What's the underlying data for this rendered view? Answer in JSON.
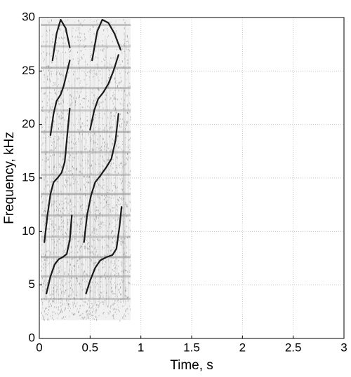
{
  "chart_data": {
    "type": "spectrogram",
    "xlabel": "Time, s",
    "ylabel": "Frequency, kHz",
    "xlim": [
      0,
      3
    ],
    "xticks": [
      0,
      0.5,
      1,
      1.5,
      2,
      2.5,
      3
    ],
    "ylim": [
      0,
      30
    ],
    "yticks": [
      0,
      5,
      10,
      15,
      20,
      25,
      30
    ],
    "grid": true,
    "color": "#1a1a1a",
    "traces": [
      {
        "x": [
          0.07,
          0.11,
          0.15,
          0.19,
          0.23,
          0.27,
          0.3,
          0.32
        ],
        "y": [
          4.2,
          5.8,
          6.9,
          7.4,
          7.6,
          7.9,
          9.2,
          11.5
        ]
      },
      {
        "x": [
          0.05,
          0.08,
          0.11,
          0.14,
          0.18,
          0.22,
          0.25,
          0.28,
          0.3
        ],
        "y": [
          9.0,
          11.5,
          13.5,
          14.6,
          15.0,
          15.5,
          16.5,
          19.5,
          21.5
        ]
      },
      {
        "x": [
          0.11,
          0.14,
          0.17,
          0.21,
          0.24,
          0.27,
          0.3
        ],
        "y": [
          19.0,
          21.0,
          22.2,
          22.8,
          23.6,
          24.8,
          26.0
        ]
      },
      {
        "x": [
          0.13,
          0.17,
          0.21,
          0.26,
          0.3
        ],
        "y": [
          26.0,
          28.5,
          29.8,
          29.0,
          27.2
        ]
      },
      {
        "x": [
          0.46,
          0.5,
          0.55,
          0.6,
          0.66,
          0.72,
          0.76,
          0.79,
          0.81
        ],
        "y": [
          4.2,
          5.4,
          6.6,
          7.3,
          7.6,
          7.8,
          8.4,
          10.5,
          12.3
        ]
      },
      {
        "x": [
          0.44,
          0.47,
          0.51,
          0.55,
          0.6,
          0.66,
          0.71,
          0.75,
          0.78
        ],
        "y": [
          9.0,
          11.5,
          13.4,
          14.6,
          15.2,
          16.0,
          16.8,
          18.5,
          21.0
        ]
      },
      {
        "x": [
          0.5,
          0.54,
          0.58,
          0.63,
          0.68,
          0.73,
          0.78
        ],
        "y": [
          19.5,
          21.3,
          22.4,
          23.0,
          23.8,
          25.0,
          26.5
        ]
      },
      {
        "x": [
          0.52,
          0.57,
          0.62,
          0.68,
          0.74,
          0.8
        ],
        "y": [
          26.0,
          28.7,
          29.8,
          29.5,
          28.5,
          27.0
        ]
      }
    ]
  }
}
